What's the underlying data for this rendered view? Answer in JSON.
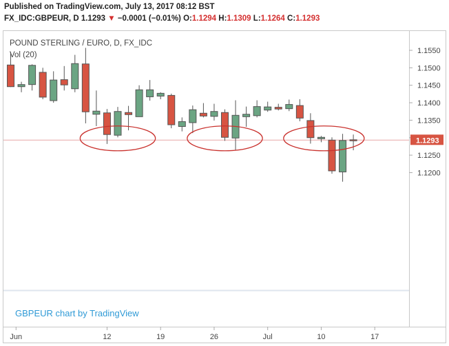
{
  "header": {
    "published_line": "Published on TradingView.com, July 13, 2017 08:12 BST",
    "symbol": "FX_IDC:GBPEUR, D",
    "last": "1.1293",
    "change": "−0.0001 (−0.01%)",
    "o_label": "O:",
    "o": "1.1294",
    "h_label": "H:",
    "h": "1.1309",
    "l_label": "L:",
    "l": "1.1264",
    "c_label": "C:",
    "c": "1.1293"
  },
  "legend": {
    "title": "POUND STERLING / EURO, D, FX_IDC",
    "volume": "Vol (20)"
  },
  "watermark": "GBPEUR chart by TradingView",
  "price_badge": "1.1293",
  "colors": {
    "up": "#6ba583",
    "down": "#d75442",
    "circle": "#c9302c",
    "last_line": "#e8a7a7",
    "watermark": "#2f9ad6"
  },
  "chart_data": {
    "type": "candlestick",
    "symbol": "GBPEUR",
    "timeframe": "D",
    "ylim": [
      1.1145,
      1.1585
    ],
    "y_ticks": [
      "1.1550",
      "1.1500",
      "1.1450",
      "1.1400",
      "1.1350",
      "1.1300",
      "1.1250",
      "1.1200"
    ],
    "x_ticks": [
      "Jun",
      "12",
      "19",
      "26",
      "Jul",
      "10",
      "17"
    ],
    "last_price": 1.1293,
    "candles": [
      {
        "date": "2017-05-31",
        "o": 1.1508,
        "h": 1.1545,
        "l": 1.1445,
        "c": 1.1446
      },
      {
        "date": "2017-06-01",
        "o": 1.1446,
        "h": 1.146,
        "l": 1.143,
        "c": 1.1452
      },
      {
        "date": "2017-06-02",
        "o": 1.1452,
        "h": 1.151,
        "l": 1.1435,
        "c": 1.1507
      },
      {
        "date": "2017-06-05",
        "o": 1.1487,
        "h": 1.15,
        "l": 1.141,
        "c": 1.1416
      },
      {
        "date": "2017-06-06",
        "o": 1.1406,
        "h": 1.149,
        "l": 1.14,
        "c": 1.1465
      },
      {
        "date": "2017-06-07",
        "o": 1.1466,
        "h": 1.1505,
        "l": 1.1435,
        "c": 1.1451
      },
      {
        "date": "2017-06-08",
        "o": 1.144,
        "h": 1.1537,
        "l": 1.143,
        "c": 1.1512
      },
      {
        "date": "2017-06-09",
        "o": 1.1511,
        "h": 1.1557,
        "l": 1.1341,
        "c": 1.1374
      },
      {
        "date": "2017-06-12",
        "o": 1.1367,
        "h": 1.1435,
        "l": 1.1333,
        "c": 1.1376
      },
      {
        "date": "2017-06-13",
        "o": 1.1371,
        "h": 1.1382,
        "l": 1.1282,
        "c": 1.1309
      },
      {
        "date": "2017-06-14",
        "o": 1.1307,
        "h": 1.1388,
        "l": 1.1301,
        "c": 1.1375
      },
      {
        "date": "2017-06-15",
        "o": 1.1372,
        "h": 1.1391,
        "l": 1.1321,
        "c": 1.1366
      },
      {
        "date": "2017-06-16",
        "o": 1.136,
        "h": 1.145,
        "l": 1.136,
        "c": 1.1437
      },
      {
        "date": "2017-06-19",
        "o": 1.1417,
        "h": 1.1465,
        "l": 1.1406,
        "c": 1.1437
      },
      {
        "date": "2017-06-20",
        "o": 1.1419,
        "h": 1.143,
        "l": 1.141,
        "c": 1.1427
      },
      {
        "date": "2017-06-21",
        "o": 1.1421,
        "h": 1.1426,
        "l": 1.1327,
        "c": 1.1337
      },
      {
        "date": "2017-06-22",
        "o": 1.1332,
        "h": 1.1358,
        "l": 1.1318,
        "c": 1.1346
      },
      {
        "date": "2017-06-23",
        "o": 1.1343,
        "h": 1.1392,
        "l": 1.1313,
        "c": 1.138
      },
      {
        "date": "2017-06-26",
        "o": 1.137,
        "h": 1.1399,
        "l": 1.1358,
        "c": 1.1362
      },
      {
        "date": "2017-06-27",
        "o": 1.1361,
        "h": 1.1397,
        "l": 1.1349,
        "c": 1.1375
      },
      {
        "date": "2017-06-28",
        "o": 1.1372,
        "h": 1.1381,
        "l": 1.1291,
        "c": 1.1301
      },
      {
        "date": "2017-06-29",
        "o": 1.1299,
        "h": 1.1407,
        "l": 1.1263,
        "c": 1.1364
      },
      {
        "date": "2017-06-30",
        "o": 1.136,
        "h": 1.1389,
        "l": 1.1331,
        "c": 1.1367
      },
      {
        "date": "2017-07-03",
        "o": 1.1363,
        "h": 1.1407,
        "l": 1.1358,
        "c": 1.1389
      },
      {
        "date": "2017-07-04",
        "o": 1.1379,
        "h": 1.1403,
        "l": 1.1374,
        "c": 1.1388
      },
      {
        "date": "2017-07-05",
        "o": 1.1387,
        "h": 1.1397,
        "l": 1.1378,
        "c": 1.1382
      },
      {
        "date": "2017-07-06",
        "o": 1.1383,
        "h": 1.1409,
        "l": 1.1376,
        "c": 1.1395
      },
      {
        "date": "2017-07-07",
        "o": 1.1392,
        "h": 1.141,
        "l": 1.1347,
        "c": 1.1356
      },
      {
        "date": "2017-07-10",
        "o": 1.1349,
        "h": 1.137,
        "l": 1.1283,
        "c": 1.13
      },
      {
        "date": "2017-07-11",
        "o": 1.1297,
        "h": 1.1305,
        "l": 1.1287,
        "c": 1.1301
      },
      {
        "date": "2017-07-12",
        "o": 1.1293,
        "h": 1.1301,
        "l": 1.1197,
        "c": 1.1205
      },
      {
        "date": "2017-07-13",
        "o": 1.1202,
        "h": 1.1311,
        "l": 1.1174,
        "c": 1.1292
      },
      {
        "date": "2017-07-13",
        "o": 1.1294,
        "h": 1.1309,
        "l": 1.1264,
        "c": 1.1293
      }
    ],
    "annotations": [
      {
        "type": "ellipse",
        "from": "2017-06-09",
        "to": "2017-06-19",
        "center_price": 1.1298
      },
      {
        "type": "ellipse",
        "from": "2017-06-23",
        "to": "2017-07-03",
        "center_price": 1.1298
      },
      {
        "type": "ellipse",
        "from": "2017-07-06",
        "to": "2017-07-14",
        "center_price": 1.1298
      }
    ]
  }
}
